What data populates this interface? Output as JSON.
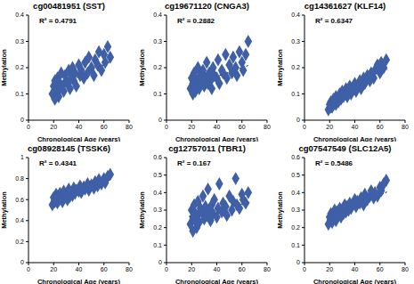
{
  "chart_data": [
    {
      "type": "scatter",
      "title": "cg00481951 (SST)",
      "annotation": "R² = 0.4791",
      "x_label": "Chronological Age (years)",
      "y_label": "Methylation",
      "color": "#3f5fa6",
      "marker": "diamond",
      "x": [
        19,
        20,
        21,
        21,
        22,
        23,
        23,
        24,
        25,
        25,
        26,
        27,
        28,
        29,
        30,
        31,
        32,
        33,
        34,
        35,
        36,
        37,
        38,
        40,
        41,
        42,
        44,
        45,
        47,
        48,
        50,
        52,
        53,
        55,
        56,
        58,
        60,
        61,
        63,
        65
      ],
      "values": [
        0.1,
        0.13,
        0.08,
        0.15,
        0.12,
        0.11,
        0.16,
        0.09,
        0.14,
        0.12,
        0.18,
        0.13,
        0.11,
        0.17,
        0.15,
        0.14,
        0.19,
        0.12,
        0.16,
        0.2,
        0.15,
        0.18,
        0.13,
        0.21,
        0.17,
        0.19,
        0.16,
        0.22,
        0.18,
        0.24,
        0.2,
        0.17,
        0.23,
        0.21,
        0.26,
        0.19,
        0.25,
        0.22,
        0.28,
        0.24
      ],
      "trend_line": {
        "x": [
          18,
          66
        ],
        "y": [
          0.115,
          0.225
        ]
      },
      "xlim": [
        0,
        80
      ],
      "xticks": [
        0,
        20,
        40,
        60,
        80
      ],
      "ylim": [
        0,
        0.4
      ],
      "yticks": [
        0,
        0.1,
        0.2,
        0.3,
        0.4
      ]
    },
    {
      "type": "scatter",
      "title": "cg19671120 (CNGA3)",
      "annotation": "R² = 0.2882",
      "x_label": "Chronological Age (years)",
      "y_label": "Methylation",
      "color": "#3f5fa6",
      "marker": "diamond",
      "x": [
        19,
        20,
        21,
        21,
        22,
        23,
        23,
        24,
        25,
        25,
        26,
        27,
        28,
        29,
        30,
        31,
        32,
        33,
        34,
        35,
        36,
        37,
        38,
        40,
        41,
        42,
        44,
        45,
        47,
        48,
        50,
        52,
        53,
        55,
        56,
        58,
        60,
        61,
        63,
        65
      ],
      "values": [
        0.12,
        0.16,
        0.1,
        0.14,
        0.18,
        0.13,
        0.11,
        0.15,
        0.2,
        0.14,
        0.12,
        0.17,
        0.15,
        0.19,
        0.13,
        0.16,
        0.22,
        0.14,
        0.18,
        0.15,
        0.12,
        0.2,
        0.17,
        0.16,
        0.23,
        0.14,
        0.19,
        0.18,
        0.25,
        0.16,
        0.21,
        0.18,
        0.24,
        0.2,
        0.17,
        0.26,
        0.22,
        0.19,
        0.25,
        0.3
      ],
      "trend_line": {
        "x": [
          18,
          66
        ],
        "y": [
          0.13,
          0.21
        ]
      },
      "xlim": [
        0,
        80
      ],
      "xticks": [
        0,
        20,
        40,
        60,
        80
      ],
      "ylim": [
        0,
        0.4
      ],
      "yticks": [
        0,
        0.1,
        0.2,
        0.3,
        0.4
      ]
    },
    {
      "type": "scatter",
      "title": "cg14361627 (KLF14)",
      "annotation": "R² = 0.6347",
      "x_label": "Chronological Age (years)",
      "y_label": "Methylation",
      "color": "#3f5fa6",
      "marker": "diamond",
      "x": [
        19,
        20,
        21,
        21,
        22,
        23,
        23,
        24,
        25,
        25,
        26,
        27,
        28,
        29,
        30,
        31,
        32,
        33,
        34,
        35,
        36,
        37,
        38,
        40,
        41,
        42,
        44,
        45,
        47,
        48,
        50,
        52,
        53,
        55,
        56,
        58,
        60,
        61,
        63,
        65
      ],
      "values": [
        0.04,
        0.06,
        0.05,
        0.07,
        0.05,
        0.08,
        0.06,
        0.07,
        0.09,
        0.06,
        0.08,
        0.07,
        0.1,
        0.08,
        0.11,
        0.09,
        0.1,
        0.12,
        0.09,
        0.11,
        0.13,
        0.1,
        0.12,
        0.14,
        0.11,
        0.13,
        0.15,
        0.12,
        0.16,
        0.14,
        0.17,
        0.15,
        0.18,
        0.16,
        0.19,
        0.21,
        0.18,
        0.22,
        0.2,
        0.23
      ],
      "trend_line": {
        "x": [
          18,
          66
        ],
        "y": [
          0.045,
          0.195
        ]
      },
      "xlim": [
        0,
        80
      ],
      "xticks": [
        0,
        20,
        40,
        60,
        80
      ],
      "ylim": [
        0,
        0.4
      ],
      "yticks": [
        0,
        0.1,
        0.2,
        0.3,
        0.4
      ]
    },
    {
      "type": "scatter",
      "title": "cg08928145 (TSSK6)",
      "annotation": "R² = 0.4341",
      "x_label": "Chronological Age (years)",
      "y_label": "Methylation",
      "color": "#3f5fa6",
      "marker": "diamond",
      "x": [
        19,
        20,
        21,
        21,
        22,
        23,
        23,
        24,
        25,
        25,
        26,
        27,
        28,
        29,
        30,
        31,
        32,
        33,
        34,
        35,
        36,
        37,
        38,
        40,
        41,
        42,
        44,
        45,
        47,
        48,
        50,
        52,
        53,
        55,
        56,
        58,
        60,
        61,
        63,
        65
      ],
      "values": [
        0.55,
        0.62,
        0.58,
        0.6,
        0.65,
        0.57,
        0.63,
        0.59,
        0.66,
        0.61,
        0.64,
        0.58,
        0.68,
        0.62,
        0.65,
        0.6,
        0.7,
        0.63,
        0.67,
        0.64,
        0.71,
        0.66,
        0.69,
        0.68,
        0.73,
        0.67,
        0.72,
        0.7,
        0.75,
        0.69,
        0.74,
        0.71,
        0.77,
        0.73,
        0.79,
        0.75,
        0.8,
        0.76,
        0.82,
        0.84
      ],
      "trend_line": {
        "x": [
          18,
          66
        ],
        "y": [
          0.59,
          0.79
        ]
      },
      "xlim": [
        0,
        80
      ],
      "xticks": [
        0,
        20,
        40,
        60,
        80
      ],
      "ylim": [
        0,
        1
      ],
      "yticks": [
        0,
        0.2,
        0.4,
        0.6,
        0.8,
        1
      ]
    },
    {
      "type": "scatter",
      "title": "cg12757011 (TBR1)",
      "annotation": "R² = 0.167",
      "x_label": "Chronological Age (years)",
      "y_label": "Methylation",
      "color": "#3f5fa6",
      "marker": "diamond",
      "x": [
        19,
        20,
        21,
        21,
        22,
        23,
        23,
        24,
        25,
        25,
        26,
        27,
        28,
        29,
        30,
        31,
        32,
        33,
        34,
        35,
        36,
        37,
        38,
        40,
        41,
        42,
        44,
        45,
        47,
        48,
        50,
        52,
        53,
        55,
        56,
        58,
        60,
        61,
        63,
        65
      ],
      "values": [
        0.22,
        0.3,
        0.18,
        0.26,
        0.33,
        0.24,
        0.28,
        0.2,
        0.35,
        0.27,
        0.23,
        0.31,
        0.29,
        0.38,
        0.25,
        0.32,
        0.27,
        0.42,
        0.3,
        0.24,
        0.33,
        0.28,
        0.36,
        0.26,
        0.31,
        0.45,
        0.29,
        0.34,
        0.32,
        0.27,
        0.38,
        0.3,
        0.35,
        0.48,
        0.33,
        0.31,
        0.39,
        0.36,
        0.34,
        0.4
      ],
      "trend_line": {
        "x": [
          18,
          66
        ],
        "y": [
          0.265,
          0.345
        ]
      },
      "xlim": [
        0,
        80
      ],
      "xticks": [
        0,
        20,
        40,
        60,
        80
      ],
      "ylim": [
        0,
        0.6
      ],
      "yticks": [
        0,
        0.1,
        0.2,
        0.3,
        0.4,
        0.5,
        0.6
      ]
    },
    {
      "type": "scatter",
      "title": "cg07547549 (SLC12A5)",
      "annotation": "R² = 0.5486",
      "x_label": "Chronological Age (years)",
      "y_label": "Methylation",
      "color": "#3f5fa6",
      "marker": "diamond",
      "x": [
        19,
        20,
        21,
        21,
        22,
        23,
        23,
        24,
        25,
        25,
        26,
        27,
        28,
        29,
        30,
        31,
        32,
        33,
        34,
        35,
        36,
        37,
        38,
        40,
        41,
        42,
        44,
        45,
        47,
        48,
        50,
        52,
        53,
        55,
        56,
        58,
        60,
        61,
        63,
        65
      ],
      "values": [
        0.22,
        0.26,
        0.24,
        0.28,
        0.23,
        0.27,
        0.25,
        0.3,
        0.26,
        0.24,
        0.29,
        0.27,
        0.31,
        0.26,
        0.3,
        0.28,
        0.33,
        0.29,
        0.32,
        0.3,
        0.34,
        0.31,
        0.33,
        0.36,
        0.32,
        0.35,
        0.34,
        0.37,
        0.33,
        0.39,
        0.36,
        0.38,
        0.41,
        0.37,
        0.4,
        0.38,
        0.43,
        0.41,
        0.45,
        0.47
      ],
      "trend_line": {
        "x": [
          18,
          66
        ],
        "y": [
          0.245,
          0.405
        ]
      },
      "xlim": [
        0,
        80
      ],
      "xticks": [
        0,
        20,
        40,
        60,
        80
      ],
      "ylim": [
        0,
        0.6
      ],
      "yticks": [
        0,
        0.1,
        0.2,
        0.3,
        0.4,
        0.5,
        0.6
      ]
    }
  ]
}
